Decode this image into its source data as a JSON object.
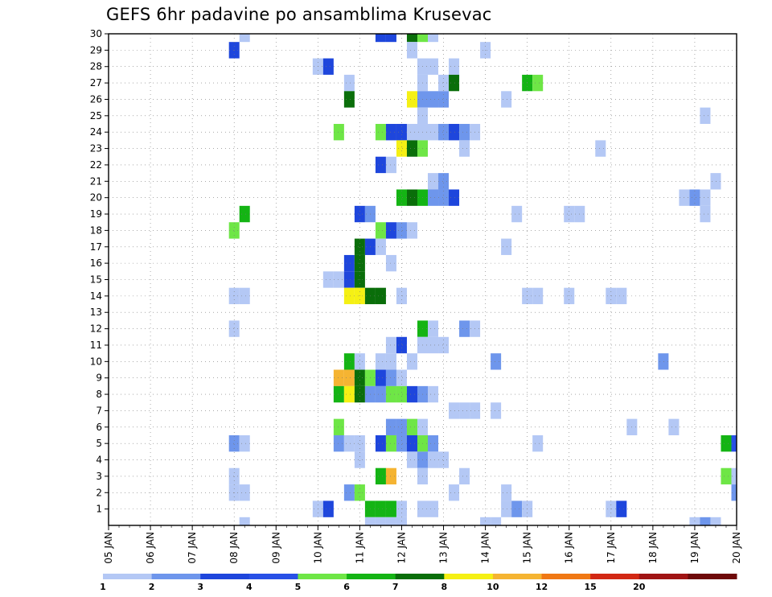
{
  "chart_data": {
    "type": "heatmap",
    "title": "GEFS 6hr padavine po ansamblima Krusevac",
    "xlabel": "",
    "ylabel": "",
    "x_tick_labels": [
      "05 JAN",
      "06 JAN",
      "07 JAN",
      "08 JAN",
      "09 JAN",
      "10 JAN",
      "11 JAN",
      "12 JAN",
      "13 JAN",
      "14 JAN",
      "15 JAN",
      "16 JAN",
      "17 JAN",
      "18 JAN",
      "19 JAN",
      "20 JAN"
    ],
    "y_tick_labels": [
      1,
      2,
      3,
      4,
      5,
      6,
      7,
      8,
      9,
      10,
      11,
      12,
      13,
      14,
      15,
      16,
      17,
      18,
      19,
      20,
      21,
      22,
      23,
      24,
      25,
      26,
      27,
      28,
      29,
      30
    ],
    "x_range_days": [
      5,
      20
    ],
    "y_range": [
      0,
      30
    ],
    "grid": "dotted",
    "legend": {
      "placement": "bottom",
      "levels": [
        1,
        2,
        3,
        4,
        5,
        6,
        7,
        8,
        10,
        12,
        15,
        20
      ],
      "colors": [
        "#b4c8f5",
        "#6e96ec",
        "#1e46dc",
        "#2850e6",
        "#6ee646",
        "#14b414",
        "#0a6e0a",
        "#f5f014",
        "#f5b432",
        "#f07814",
        "#d22814",
        "#a01414",
        "#6e0a0a"
      ]
    },
    "cells_note_units": "x = day of January (cell = 6 hr), y = ensemble member; value = 6hr precipitation (mm)",
    "cells": [
      [
        8.25,
        30,
        1
      ],
      [
        11.5,
        30,
        3
      ],
      [
        11.75,
        30,
        3
      ],
      [
        12.25,
        30,
        7
      ],
      [
        12.5,
        30,
        5
      ],
      [
        12.75,
        30,
        1
      ],
      [
        8.0,
        29,
        3
      ],
      [
        12.25,
        29,
        1
      ],
      [
        14.0,
        29,
        1
      ],
      [
        10.0,
        28,
        1
      ],
      [
        10.25,
        28,
        3
      ],
      [
        12.5,
        28,
        1
      ],
      [
        12.75,
        28,
        1
      ],
      [
        13.25,
        28,
        1
      ],
      [
        10.75,
        27,
        1
      ],
      [
        12.5,
        27,
        1
      ],
      [
        13.0,
        27,
        1
      ],
      [
        13.25,
        27,
        7
      ],
      [
        15.0,
        27,
        6
      ],
      [
        15.25,
        27,
        5
      ],
      [
        10.75,
        26,
        7
      ],
      [
        12.25,
        26,
        8
      ],
      [
        12.5,
        26,
        2
      ],
      [
        12.75,
        26,
        2
      ],
      [
        13.0,
        26,
        2
      ],
      [
        14.5,
        26,
        1
      ],
      [
        12.5,
        25,
        1
      ],
      [
        19.25,
        25,
        1
      ],
      [
        10.5,
        24,
        5
      ],
      [
        11.5,
        24,
        5
      ],
      [
        11.75,
        24,
        3
      ],
      [
        12.0,
        24,
        3
      ],
      [
        12.25,
        24,
        1
      ],
      [
        12.5,
        24,
        1
      ],
      [
        12.75,
        24,
        1
      ],
      [
        13.0,
        24,
        2
      ],
      [
        13.25,
        24,
        3
      ],
      [
        13.5,
        24,
        2
      ],
      [
        13.75,
        24,
        1
      ],
      [
        12.0,
        23,
        8
      ],
      [
        12.25,
        23,
        7
      ],
      [
        12.5,
        23,
        5
      ],
      [
        13.5,
        23,
        1
      ],
      [
        16.75,
        23,
        1
      ],
      [
        11.5,
        22,
        3
      ],
      [
        11.75,
        22,
        1
      ],
      [
        12.75,
        21,
        1
      ],
      [
        13.0,
        21,
        2
      ],
      [
        19.5,
        21,
        1
      ],
      [
        12.0,
        20,
        6
      ],
      [
        12.25,
        20,
        7
      ],
      [
        12.5,
        20,
        6
      ],
      [
        12.75,
        20,
        2
      ],
      [
        13.0,
        20,
        2
      ],
      [
        13.25,
        20,
        3
      ],
      [
        18.75,
        20,
        1
      ],
      [
        19.0,
        20,
        2
      ],
      [
        19.25,
        20,
        1
      ],
      [
        8.25,
        19,
        6
      ],
      [
        11.0,
        19,
        3
      ],
      [
        11.25,
        19,
        2
      ],
      [
        14.75,
        19,
        1
      ],
      [
        16.0,
        19,
        1
      ],
      [
        16.25,
        19,
        1
      ],
      [
        19.25,
        19,
        1
      ],
      [
        8.0,
        18,
        5
      ],
      [
        11.5,
        18,
        5
      ],
      [
        11.75,
        18,
        3
      ],
      [
        12.0,
        18,
        2
      ],
      [
        12.25,
        18,
        1
      ],
      [
        11.0,
        17,
        7
      ],
      [
        11.25,
        17,
        3
      ],
      [
        11.5,
        17,
        1
      ],
      [
        14.5,
        17,
        1
      ],
      [
        10.75,
        16,
        3
      ],
      [
        11.0,
        16,
        7
      ],
      [
        11.75,
        16,
        1
      ],
      [
        10.25,
        15,
        1
      ],
      [
        10.5,
        15,
        1
      ],
      [
        10.75,
        15,
        3
      ],
      [
        11.0,
        15,
        7
      ],
      [
        8.0,
        14,
        1
      ],
      [
        8.25,
        14,
        1
      ],
      [
        10.75,
        14,
        9
      ],
      [
        11.0,
        14,
        9
      ],
      [
        11.25,
        14,
        7
      ],
      [
        11.5,
        14,
        7
      ],
      [
        12.0,
        14,
        1
      ],
      [
        15.0,
        14,
        1
      ],
      [
        15.25,
        14,
        1
      ],
      [
        16.0,
        14,
        1
      ],
      [
        17.0,
        14,
        1
      ],
      [
        17.25,
        14,
        1
      ],
      [
        8.0,
        12,
        1
      ],
      [
        12.5,
        12,
        6
      ],
      [
        12.75,
        12,
        1
      ],
      [
        13.5,
        12,
        2
      ],
      [
        13.75,
        12,
        1
      ],
      [
        11.75,
        11,
        1
      ],
      [
        12.0,
        11,
        3
      ],
      [
        12.5,
        11,
        1
      ],
      [
        12.75,
        11,
        1
      ],
      [
        13.0,
        11,
        1
      ],
      [
        10.75,
        10,
        6
      ],
      [
        11.0,
        10,
        1
      ],
      [
        11.5,
        10,
        1
      ],
      [
        11.75,
        10,
        1
      ],
      [
        12.25,
        10,
        1
      ],
      [
        14.25,
        10,
        2
      ],
      [
        18.25,
        10,
        2
      ],
      [
        10.5,
        9,
        10
      ],
      [
        10.75,
        9,
        10
      ],
      [
        11.0,
        9,
        7
      ],
      [
        11.25,
        9,
        5
      ],
      [
        11.5,
        9,
        3
      ],
      [
        11.75,
        9,
        2
      ],
      [
        12.0,
        9,
        1
      ],
      [
        10.5,
        8,
        6
      ],
      [
        10.75,
        8,
        9
      ],
      [
        11.0,
        8,
        7
      ],
      [
        11.25,
        8,
        2
      ],
      [
        11.5,
        8,
        2
      ],
      [
        11.75,
        8,
        5
      ],
      [
        12.0,
        8,
        5
      ],
      [
        12.25,
        8,
        3
      ],
      [
        12.5,
        8,
        2
      ],
      [
        12.75,
        8,
        1
      ],
      [
        13.25,
        7,
        1
      ],
      [
        13.5,
        7,
        1
      ],
      [
        13.75,
        7,
        1
      ],
      [
        14.25,
        7,
        1
      ],
      [
        10.5,
        6,
        5
      ],
      [
        11.75,
        6,
        2
      ],
      [
        12.0,
        6,
        2
      ],
      [
        12.25,
        6,
        5
      ],
      [
        12.5,
        6,
        1
      ],
      [
        17.5,
        6,
        1
      ],
      [
        18.5,
        6,
        1
      ],
      [
        8.0,
        5,
        2
      ],
      [
        8.25,
        5,
        1
      ],
      [
        10.5,
        5,
        2
      ],
      [
        10.75,
        5,
        1
      ],
      [
        11.0,
        5,
        1
      ],
      [
        11.5,
        5,
        3
      ],
      [
        11.75,
        5,
        5
      ],
      [
        12.0,
        5,
        2
      ],
      [
        12.25,
        5,
        3
      ],
      [
        12.5,
        5,
        5
      ],
      [
        12.75,
        5,
        2
      ],
      [
        15.25,
        5,
        1
      ],
      [
        19.75,
        5,
        6
      ],
      [
        20.0,
        5,
        4
      ],
      [
        11.0,
        4,
        1
      ],
      [
        12.25,
        4,
        1
      ],
      [
        12.5,
        4,
        2
      ],
      [
        12.75,
        4,
        1
      ],
      [
        13.0,
        4,
        1
      ],
      [
        8.0,
        3,
        1
      ],
      [
        11.5,
        3,
        6
      ],
      [
        11.75,
        3,
        10
      ],
      [
        12.5,
        3,
        1
      ],
      [
        13.5,
        3,
        1
      ],
      [
        19.75,
        3,
        5
      ],
      [
        20.0,
        3,
        1
      ],
      [
        8.0,
        2,
        1
      ],
      [
        8.25,
        2,
        1
      ],
      [
        10.75,
        2,
        2
      ],
      [
        11.0,
        2,
        5
      ],
      [
        13.25,
        2,
        1
      ],
      [
        14.5,
        2,
        1
      ],
      [
        20.0,
        2,
        2
      ],
      [
        10.0,
        1,
        1
      ],
      [
        10.25,
        1,
        3
      ],
      [
        11.25,
        1,
        6
      ],
      [
        11.5,
        1,
        6
      ],
      [
        11.75,
        1,
        6
      ],
      [
        12.0,
        1,
        1
      ],
      [
        12.5,
        1,
        1
      ],
      [
        12.75,
        1,
        1
      ],
      [
        14.5,
        1,
        1
      ],
      [
        14.75,
        1,
        2
      ],
      [
        15.0,
        1,
        1
      ],
      [
        17.0,
        1,
        1
      ],
      [
        17.25,
        1,
        3
      ],
      [
        8.25,
        0,
        1
      ],
      [
        11.25,
        0,
        1
      ],
      [
        11.5,
        0,
        1
      ],
      [
        11.75,
        0,
        1
      ],
      [
        12.0,
        0,
        1
      ],
      [
        14.0,
        0,
        1
      ],
      [
        14.25,
        0,
        1
      ],
      [
        19.0,
        0,
        1
      ],
      [
        19.25,
        0,
        2
      ],
      [
        19.5,
        0,
        1
      ]
    ]
  }
}
